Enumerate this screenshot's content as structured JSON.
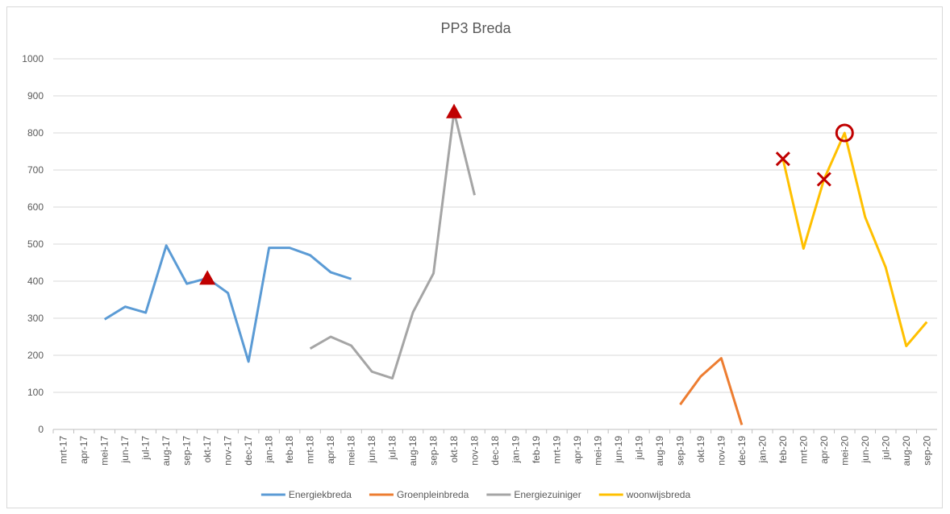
{
  "chart_data": {
    "type": "line",
    "title": "PP3 Breda",
    "categories": [
      "mrt-17",
      "apr-17",
      "mei-17",
      "jun-17",
      "jul-17",
      "aug-17",
      "sep-17",
      "okt-17",
      "nov-17",
      "dec-17",
      "jan-18",
      "feb-18",
      "mrt-18",
      "apr-18",
      "mei-18",
      "jun-18",
      "jul-18",
      "aug-18",
      "sep-18",
      "okt-18",
      "nov-18",
      "dec-18",
      "jan-19",
      "feb-19",
      "mrt-19",
      "apr-19",
      "mei-19",
      "jun-19",
      "jul-19",
      "aug-19",
      "sep-19",
      "okt-19",
      "nov-19",
      "dec-19",
      "jan-20",
      "feb-20",
      "mrt-20",
      "apr-20",
      "mei-20",
      "jun-20",
      "jul-20",
      "aug-20",
      "sep-20"
    ],
    "series": [
      {
        "name": "Energiekbreda",
        "color": "#5b9bd5",
        "values": [
          null,
          null,
          297,
          331,
          315,
          496,
          393,
          408,
          368,
          183,
          490,
          490,
          470,
          424,
          406,
          null,
          null,
          null,
          null,
          null,
          null,
          null,
          null,
          null,
          null,
          null,
          null,
          null,
          null,
          null,
          null,
          null,
          null,
          null,
          null,
          null,
          null,
          null,
          null,
          null,
          null,
          null,
          null
        ],
        "markers": [
          {
            "index": 7,
            "symbol": "triangle"
          }
        ]
      },
      {
        "name": "Groenpleinbreda",
        "color": "#ed7d31",
        "values": [
          null,
          null,
          null,
          null,
          null,
          null,
          null,
          null,
          null,
          null,
          null,
          null,
          null,
          null,
          null,
          null,
          null,
          null,
          null,
          null,
          null,
          null,
          null,
          null,
          null,
          null,
          null,
          null,
          null,
          null,
          67,
          143,
          192,
          12,
          null,
          null,
          null,
          null,
          null,
          null,
          null,
          null,
          null
        ]
      },
      {
        "name": "Energiezuiniger",
        "color": "#a5a5a5",
        "values": [
          null,
          null,
          null,
          null,
          null,
          null,
          null,
          null,
          null,
          null,
          null,
          null,
          218,
          250,
          226,
          156,
          138,
          316,
          421,
          857,
          632,
          null,
          null,
          null,
          null,
          null,
          null,
          null,
          null,
          null,
          null,
          null,
          null,
          null,
          null,
          null,
          null,
          null,
          null,
          null,
          null,
          null,
          null
        ],
        "markers": [
          {
            "index": 19,
            "symbol": "triangle"
          }
        ]
      },
      {
        "name": "woonwijsbreda",
        "color": "#ffc000",
        "values": [
          null,
          null,
          null,
          null,
          null,
          null,
          null,
          null,
          null,
          null,
          null,
          null,
          null,
          null,
          null,
          null,
          null,
          null,
          null,
          null,
          null,
          null,
          null,
          null,
          null,
          null,
          null,
          null,
          null,
          null,
          null,
          null,
          null,
          null,
          null,
          730,
          488,
          675,
          800,
          573,
          437,
          225,
          290
        ],
        "markers": [
          {
            "index": 35,
            "symbol": "cross"
          },
          {
            "index": 37,
            "symbol": "cross"
          },
          {
            "index": 38,
            "symbol": "circle"
          }
        ]
      }
    ],
    "marker_color": "#c00000",
    "ylim": [
      0,
      1000
    ],
    "yticks": [
      0,
      100,
      200,
      300,
      400,
      500,
      600,
      700,
      800,
      900,
      1000
    ],
    "grid": true,
    "legend": "bottom"
  }
}
